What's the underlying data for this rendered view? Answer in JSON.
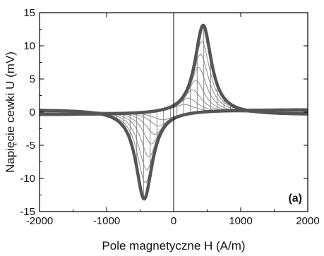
{
  "chart_data": {
    "type": "line",
    "title": "",
    "panel_label": "(a)",
    "xlabel": "Pole magnetyczne H (A/m)",
    "ylabel": "Napięcie cewki U  (mV)",
    "xlim": [
      -2000,
      2000
    ],
    "ylim": [
      -15,
      15
    ],
    "x_ticks": [
      -2000,
      -1000,
      0,
      1000,
      2000
    ],
    "x_tick_labels": [
      "-2000",
      "-1000",
      "0",
      "1000",
      "2000"
    ],
    "y_ticks": [
      -15,
      -10,
      -5,
      0,
      5,
      10,
      15
    ],
    "y_tick_labels": [
      "-15",
      "-10",
      "-5",
      "0",
      "5",
      "10",
      "15"
    ],
    "grid": false,
    "colors": {
      "outer_curve": "#555555",
      "inner_curves": "#8a8a8a",
      "hatch": "#666666",
      "axes": "#000000"
    },
    "series": [
      {
        "peak_h": 440,
        "peak_u": 13.5,
        "width_h": 150,
        "bias": 0.4,
        "stroke": 4.5
      },
      {
        "peak_h": 420,
        "peak_u": 11.0,
        "width_h": 150,
        "bias": 0.35,
        "stroke": 1.0
      },
      {
        "peak_h": 400,
        "peak_u": 9.0,
        "width_h": 150,
        "bias": 0.3,
        "stroke": 1.0
      },
      {
        "peak_h": 370,
        "peak_u": 7.0,
        "width_h": 150,
        "bias": 0.25,
        "stroke": 1.0
      },
      {
        "peak_h": 330,
        "peak_u": 5.0,
        "width_h": 160,
        "bias": 0.2,
        "stroke": 1.0
      },
      {
        "peak_h": 280,
        "peak_u": 3.5,
        "width_h": 170,
        "bias": 0.15,
        "stroke": 1.0
      },
      {
        "peak_h": 220,
        "peak_u": 2.2,
        "width_h": 180,
        "bias": 0.1,
        "stroke": 1.0
      },
      {
        "peak_h": 160,
        "peak_u": 1.2,
        "width_h": 200,
        "bias": 0.05,
        "stroke": 1.0
      }
    ],
    "hatch_lines": {
      "from_h": -1750,
      "to_h": 1750,
      "step_h": 100
    }
  }
}
